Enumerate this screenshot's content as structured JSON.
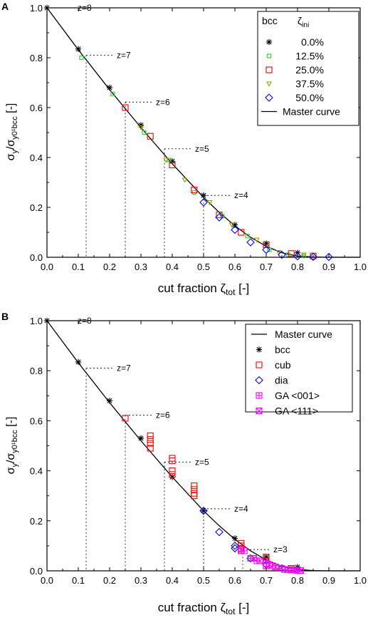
{
  "figure": {
    "panels": [
      {
        "letter": "A",
        "legend_title": "bcc",
        "legend_title2": "ζ",
        "legend_title2_sub": "ini"
      },
      {
        "letter": "B",
        "legend_title": "",
        "legend_title2": "",
        "legend_title2_sub": ""
      }
    ]
  },
  "colors": {
    "master": "#000000",
    "bcc": "#000000",
    "p12": "#33cc33",
    "p25": "#ff0000",
    "p37": "#999900",
    "p50": "#0000ff",
    "cub": "#ff0000",
    "dia": "#0000ff",
    "ga": "#ff00ff"
  },
  "chart_data": [
    {
      "type": "scatter",
      "panel": "A",
      "xlabel": "cut fraction ζtot [-]",
      "xlabel_parts": [
        "cut fraction ζ",
        "tot",
        " [-]"
      ],
      "ylabel": "σy/σy0¹bcc [-]",
      "ylabel_parts": [
        "σ",
        "y",
        "/σ",
        "y0¹bcc",
        " [-]"
      ],
      "xlim": [
        0,
        1
      ],
      "ylim": [
        0,
        1
      ],
      "x_ticks": [
        "0.0",
        "0.1",
        "0.2",
        "0.3",
        "0.4",
        "0.5",
        "0.6",
        "0.7",
        "0.8",
        "0.9",
        "1.0"
      ],
      "y_ticks": [
        "0.0",
        "0.2",
        "0.4",
        "0.6",
        "0.8",
        "1.0"
      ],
      "grid": false,
      "legend_position": "top-right",
      "master_curve": {
        "name": "Master curve",
        "x": [
          0,
          0.1,
          0.2,
          0.3,
          0.4,
          0.5,
          0.55,
          0.6,
          0.65,
          0.7,
          0.75,
          0.8,
          0.85,
          0.9,
          0.95,
          1.0
        ],
        "y": [
          1.0,
          0.832,
          0.672,
          0.52,
          0.375,
          0.24,
          0.18,
          0.126,
          0.08,
          0.044,
          0.018,
          0.005,
          0.001,
          0,
          0,
          0
        ]
      },
      "series": [
        {
          "name": "0.0%",
          "marker": "asterisk",
          "color": "#000000",
          "x": [
            0,
            0.1,
            0.2,
            0.3,
            0.4,
            0.5,
            0.6,
            0.7,
            0.8
          ],
          "y": [
            1.0,
            0.835,
            0.68,
            0.53,
            0.385,
            0.248,
            0.13,
            0.055,
            0.018
          ]
        },
        {
          "name": "12.5%",
          "marker": "square-small",
          "color": "#33cc33",
          "x": [
            0.11,
            0.21,
            0.31,
            0.39,
            0.47,
            0.56,
            0.64,
            0.71,
            0.77,
            0.82
          ],
          "y": [
            0.8,
            0.655,
            0.5,
            0.39,
            0.26,
            0.165,
            0.085,
            0.03,
            0.01,
            0.005
          ]
        },
        {
          "name": "25.0%",
          "marker": "square",
          "color": "#ff0000",
          "x": [
            0.25,
            0.33,
            0.4,
            0.47,
            0.55,
            0.62,
            0.7,
            0.78,
            0.85
          ],
          "y": [
            0.6,
            0.485,
            0.37,
            0.27,
            0.17,
            0.1,
            0.05,
            0.015,
            0.005
          ]
        },
        {
          "name": "37.5%",
          "marker": "triangle-down",
          "color": "#999900",
          "x": [
            0.3,
            0.38,
            0.44,
            0.52,
            0.59,
            0.67,
            0.74,
            0.82
          ],
          "y": [
            0.52,
            0.39,
            0.31,
            0.22,
            0.13,
            0.07,
            0.02,
            0.01
          ]
        },
        {
          "name": "50.0%",
          "marker": "diamond",
          "color": "#0000ff",
          "x": [
            0.5,
            0.55,
            0.6,
            0.65,
            0.7,
            0.75,
            0.8,
            0.85,
            0.9
          ],
          "y": [
            0.22,
            0.16,
            0.11,
            0.06,
            0.03,
            0.01,
            0.004,
            0.002,
            0.001
          ]
        }
      ],
      "annotations": [
        {
          "text": "z=8",
          "x": 0,
          "y": 1.0
        },
        {
          "text": "z=7",
          "x": 0.125,
          "y": 0.81
        },
        {
          "text": "z=6",
          "x": 0.25,
          "y": 0.622
        },
        {
          "text": "z=5",
          "x": 0.375,
          "y": 0.435
        },
        {
          "text": "z=4",
          "x": 0.5,
          "y": 0.248
        }
      ]
    },
    {
      "type": "scatter",
      "panel": "B",
      "xlabel": "cut fraction ζtot [-]",
      "xlabel_parts": [
        "cut fraction ζ",
        "tot",
        " [-]"
      ],
      "ylabel": "σy/σy0¹bcc [-]",
      "ylabel_parts": [
        "σ",
        "y",
        "/σ",
        "y0¹bcc",
        " [-]"
      ],
      "xlim": [
        0,
        1
      ],
      "ylim": [
        0,
        1
      ],
      "x_ticks": [
        "0.0",
        "0.1",
        "0.2",
        "0.3",
        "0.4",
        "0.5",
        "0.6",
        "0.7",
        "0.8",
        "0.9",
        "1.0"
      ],
      "y_ticks": [
        "0.0",
        "0.2",
        "0.4",
        "0.6",
        "0.8",
        "1.0"
      ],
      "grid": false,
      "legend_position": "top-right",
      "master_curve": {
        "name": "Master curve",
        "x": [
          0,
          0.1,
          0.2,
          0.3,
          0.4,
          0.5,
          0.55,
          0.6,
          0.65,
          0.7,
          0.75,
          0.8,
          0.85,
          0.9,
          0.95,
          1.0
        ],
        "y": [
          1.0,
          0.832,
          0.672,
          0.52,
          0.375,
          0.24,
          0.18,
          0.126,
          0.08,
          0.044,
          0.018,
          0.005,
          0.001,
          0,
          0,
          0
        ]
      },
      "series": [
        {
          "name": "bcc",
          "marker": "asterisk",
          "color": "#000000",
          "x": [
            0,
            0.1,
            0.2,
            0.3,
            0.4,
            0.5,
            0.6,
            0.7,
            0.8
          ],
          "y": [
            1.0,
            0.835,
            0.68,
            0.53,
            0.375,
            0.24,
            0.13,
            0.055,
            0.015
          ]
        },
        {
          "name": "cub",
          "marker": "square",
          "color": "#ff0000",
          "x": [
            0.25,
            0.33,
            0.33,
            0.33,
            0.33,
            0.4,
            0.4,
            0.4,
            0.4,
            0.47,
            0.47,
            0.47,
            0.47,
            0.62,
            0.62,
            0.62,
            0.62,
            0.7,
            0.7,
            0.7,
            0.7,
            0.78,
            0.78
          ],
          "y": [
            0.61,
            0.54,
            0.525,
            0.51,
            0.49,
            0.45,
            0.44,
            0.4,
            0.385,
            0.34,
            0.325,
            0.31,
            0.3,
            0.11,
            0.1,
            0.09,
            0.08,
            0.055,
            0.04,
            0.03,
            0.02,
            0.01,
            0.005
          ]
        },
        {
          "name": "dia",
          "marker": "diamond",
          "color": "#0000ff",
          "x": [
            0.5,
            0.55,
            0.6,
            0.6,
            0.65,
            0.7,
            0.75,
            0.8
          ],
          "y": [
            0.24,
            0.155,
            0.1,
            0.09,
            0.05,
            0.025,
            0.01,
            0.003
          ]
        },
        {
          "name": "GA <001>",
          "marker": "boxplus",
          "color": "#ff00ff",
          "x": [
            0.63,
            0.65,
            0.67,
            0.7,
            0.72,
            0.74,
            0.76,
            0.78,
            0.8
          ],
          "y": [
            0.08,
            0.05,
            0.04,
            0.03,
            0.02,
            0.01,
            0.005,
            0.003,
            0.001
          ]
        },
        {
          "name": "GA <111>",
          "marker": "boxtimes",
          "color": "#ff00ff",
          "x": [
            0.62,
            0.66,
            0.68,
            0.71,
            0.73,
            0.75,
            0.77,
            0.79,
            0.81
          ],
          "y": [
            0.085,
            0.05,
            0.04,
            0.025,
            0.015,
            0.01,
            0.005,
            0.003,
            0.001
          ]
        }
      ],
      "annotations": [
        {
          "text": "z=8",
          "x": 0,
          "y": 1.0
        },
        {
          "text": "z=7",
          "x": 0.125,
          "y": 0.81
        },
        {
          "text": "z=6",
          "x": 0.25,
          "y": 0.622
        },
        {
          "text": "z=5",
          "x": 0.375,
          "y": 0.435
        },
        {
          "text": "z=4",
          "x": 0.5,
          "y": 0.248
        },
        {
          "text": "z=3",
          "x": 0.625,
          "y": 0.085
        }
      ]
    }
  ]
}
